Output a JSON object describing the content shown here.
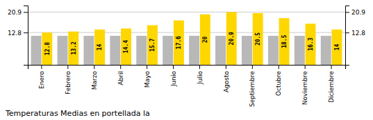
{
  "chart_data": {
    "type": "bar",
    "title": "Temperaturas Medias en portellada la",
    "categories": [
      "Enero",
      "Febrero",
      "Marzo",
      "Abril",
      "Mayo",
      "Junio",
      "Julio",
      "Agosto",
      "Septiembre",
      "Octubre",
      "Noviembre",
      "Diciembre"
    ],
    "series": [
      {
        "color": "#B8B8B8",
        "values": [
          11.5,
          11.5,
          11.5,
          11.5,
          11.5,
          11.5,
          11.5,
          11.5,
          11.5,
          11.5,
          11.5,
          11.5
        ]
      },
      {
        "color": "#FFD700",
        "data_labels": true,
        "values": [
          12.8,
          13.2,
          14.0,
          14.4,
          15.7,
          17.6,
          20.0,
          20.9,
          20.5,
          18.5,
          16.3,
          14.0
        ]
      }
    ],
    "ylim": [
      0,
      23.5
    ],
    "yticks": [
      12.8,
      20.9
    ],
    "y2lim": [
      0,
      23.5
    ],
    "y2ticks": [
      12.8,
      20.9
    ],
    "grid": true
  }
}
